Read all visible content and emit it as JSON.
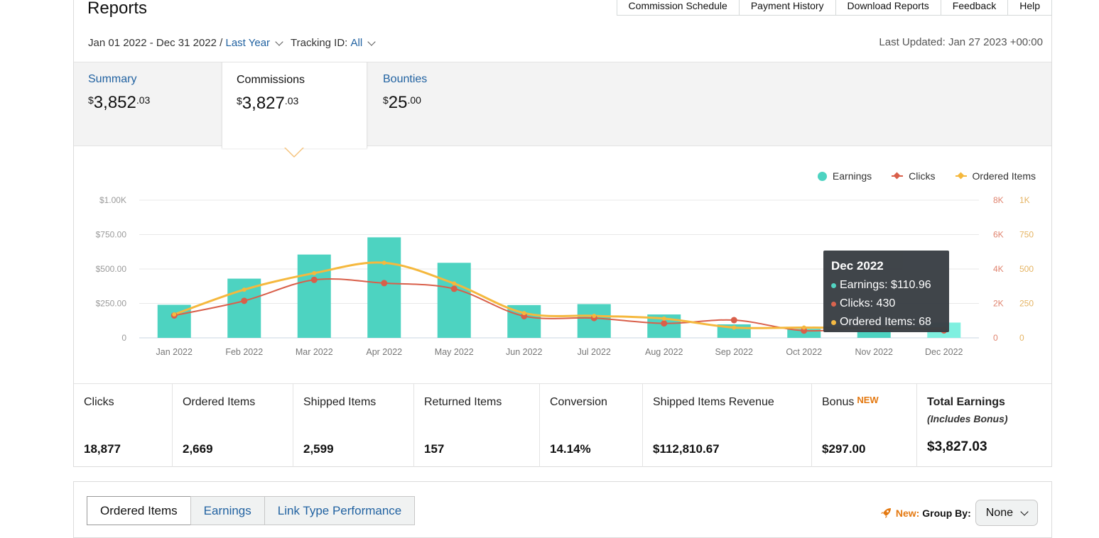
{
  "header": {
    "title": "Reports",
    "nav": [
      "Commission Schedule",
      "Payment History",
      "Download Reports",
      "Feedback",
      "Help"
    ]
  },
  "filters": {
    "date_range": "Jan 01 2022 - Dec 31 2022 /",
    "period": "Last Year",
    "tracking_label": "Tracking ID:",
    "tracking_value": "All",
    "last_updated": "Last Updated: Jan 27 2023 +00:00"
  },
  "tabs": [
    {
      "label": "Summary",
      "dollars": "3,852",
      "cents": ".03",
      "currency": "$"
    },
    {
      "label": "Commissions",
      "dollars": "3,827",
      "cents": ".03",
      "currency": "$"
    },
    {
      "label": "Bounties",
      "dollars": "25",
      "cents": ".00",
      "currency": "$"
    }
  ],
  "legend": {
    "earnings": "Earnings",
    "clicks": "Clicks",
    "ordered": "Ordered Items"
  },
  "colors": {
    "earnings": "#4dd3c1",
    "clicks": "#d95f4a",
    "ordered": "#f5b83d",
    "link": "#2162a1",
    "accent": "#e47911"
  },
  "chart_data": {
    "type": "bar",
    "categories": [
      "Jan 2022",
      "Feb 2022",
      "Mar 2022",
      "Apr 2022",
      "May 2022",
      "Jun 2022",
      "Jul 2022",
      "Aug 2022",
      "Sep 2022",
      "Oct 2022",
      "Nov 2022",
      "Dec 2022"
    ],
    "series": [
      {
        "name": "Earnings",
        "type": "bar",
        "axis": "left",
        "values": [
          240,
          430,
          605,
          730,
          545,
          238,
          245,
          170,
          98,
          65,
          55,
          110.96
        ]
      },
      {
        "name": "Clicks",
        "type": "line",
        "axis": "right-1",
        "values": [
          1300,
          2150,
          3370,
          3180,
          2850,
          1260,
          1150,
          840,
          1030,
          420,
          600,
          430
        ]
      },
      {
        "name": "Ordered Items",
        "type": "line",
        "axis": "right-2",
        "values": [
          170,
          350,
          470,
          545,
          395,
          180,
          160,
          140,
          75,
          75,
          70,
          68
        ]
      }
    ],
    "y_left_ticks": [
      "$1.00K",
      "$750.00",
      "$500.00",
      "$250.00",
      "0"
    ],
    "y_right1_ticks": [
      "8K",
      "6K",
      "4K",
      "2K",
      "0"
    ],
    "y_right2_ticks": [
      "1K",
      "750",
      "500",
      "250",
      "0"
    ],
    "ylim_left": [
      0,
      1000
    ],
    "ylim_right1": [
      0,
      8000
    ],
    "ylim_right2": [
      0,
      1000
    ],
    "grid": true,
    "legend_position": "top-right"
  },
  "tooltip": {
    "title": "Dec 2022",
    "earnings": "Earnings: $110.96",
    "clicks": "Clicks: 430",
    "ordered": "Ordered Items: 68"
  },
  "stats": [
    {
      "label": "Clicks",
      "value": "18,877"
    },
    {
      "label": "Ordered Items",
      "value": "2,669"
    },
    {
      "label": "Shipped Items",
      "value": "2,599"
    },
    {
      "label": "Returned Items",
      "value": "157"
    },
    {
      "label": "Conversion",
      "value": "14.14%"
    },
    {
      "label": "Shipped Items Revenue",
      "value": "$112,810.67"
    },
    {
      "label": "Bonus",
      "badge": "NEW",
      "value": "$297.00"
    },
    {
      "label": "Total Earnings",
      "sub": "(Includes Bonus)",
      "value": "$3,827.03"
    }
  ],
  "bottom": {
    "tabs": [
      "Ordered Items",
      "Earnings",
      "Link Type Performance"
    ],
    "new_label": "New:",
    "group_by_label": "Group By:",
    "group_by_value": "None"
  }
}
